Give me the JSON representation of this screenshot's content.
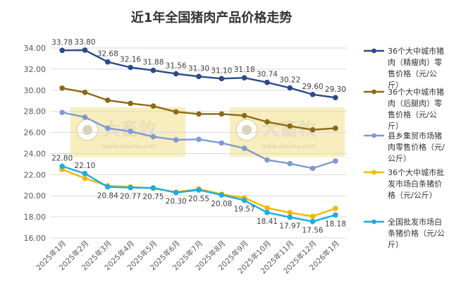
{
  "chart_data": {
    "type": "line",
    "title": "近1年全国猪肉产品价格走势",
    "categories": [
      "2025年1月",
      "2025年2月",
      "2025年3月",
      "2025年4月",
      "2025年5月",
      "2025年6月",
      "2025年7月",
      "2025年8月",
      "2025年9月",
      "2025年10月",
      "2025年11月",
      "2025年12月",
      "2026年1月"
    ],
    "ylim": [
      16.0,
      34.0
    ],
    "yticks": [
      "16.00",
      "18.00",
      "20.00",
      "22.00",
      "24.00",
      "26.00",
      "28.00",
      "30.00",
      "32.00",
      "34.00"
    ],
    "grid": true,
    "legend_position": "right",
    "watermark": "大畜牧 www.dxumu.com",
    "series": [
      {
        "name": "36个大中城市猪肉（精瘦肉）零售价格（元/公斤）",
        "legend_lines": [
          "36个大中城市猪",
          "肉（精瘦肉）零",
          "售价格（元/公",
          "斤）"
        ],
        "color": "#2B4A8B",
        "values": [
          33.78,
          33.8,
          32.68,
          32.16,
          31.88,
          31.56,
          31.3,
          31.1,
          31.18,
          30.74,
          30.22,
          29.6,
          29.3
        ],
        "labels": [
          "33.78",
          "33.80",
          "32.68",
          "32.16",
          "31.88",
          "31.56",
          "31.30",
          "31.10",
          "31.18",
          "30.74",
          "30.22",
          "29.60",
          "29.30"
        ],
        "label_side": "above"
      },
      {
        "name": "36个大中城市猪肉（后腿肉）零售价格（元/公斤）",
        "legend_lines": [
          "36个大中城市猪",
          "肉（后腿肉）零",
          "售价格（元/公",
          "斤）"
        ],
        "color": "#8C6A14",
        "values": [
          30.2,
          29.8,
          29.05,
          28.75,
          28.5,
          27.95,
          27.75,
          27.75,
          27.6,
          27.0,
          26.6,
          26.25,
          26.4
        ],
        "labels": [],
        "label_side": "none"
      },
      {
        "name": "县乡集贸市场猪肉零售价格（元/公斤）",
        "legend_lines": [
          "县乡集贸市场猪",
          "肉零售价格（元/",
          "公斤）"
        ],
        "color": "#7E99D4",
        "values": [
          27.9,
          27.45,
          26.4,
          26.1,
          25.6,
          25.3,
          25.35,
          25.0,
          24.5,
          23.4,
          23.05,
          22.6,
          23.3
        ],
        "labels": [],
        "label_side": "none"
      },
      {
        "name": "36个大中城市批发市场白条猪价格（元/公斤）",
        "legend_lines": [
          "36个大中城市批",
          "发市场白条猪价",
          "格（元/公斤）"
        ],
        "color": "#F5B800",
        "values": [
          22.5,
          21.65,
          20.95,
          20.85,
          20.7,
          20.35,
          20.65,
          20.15,
          19.8,
          18.85,
          18.4,
          18.05,
          18.8
        ],
        "labels": [],
        "label_side": "none"
      },
      {
        "name": "全国批发市场白条猪价格（元/公斤）",
        "legend_lines": [
          "全国批发市场白",
          "条猪价格（元/公",
          "斤）"
        ],
        "color": "#19AEE3",
        "values": [
          22.8,
          22.1,
          20.84,
          20.77,
          20.75,
          20.3,
          20.55,
          20.08,
          19.57,
          18.41,
          17.97,
          17.56,
          18.18
        ],
        "labels": [
          "22.80",
          "22.10",
          "20.84",
          "20.77",
          "20.75",
          "20.30",
          "20.55",
          "20.08",
          "19.57",
          "18.41",
          "17.97",
          "17.56",
          "18.18"
        ],
        "label_side": "mixed"
      }
    ]
  }
}
